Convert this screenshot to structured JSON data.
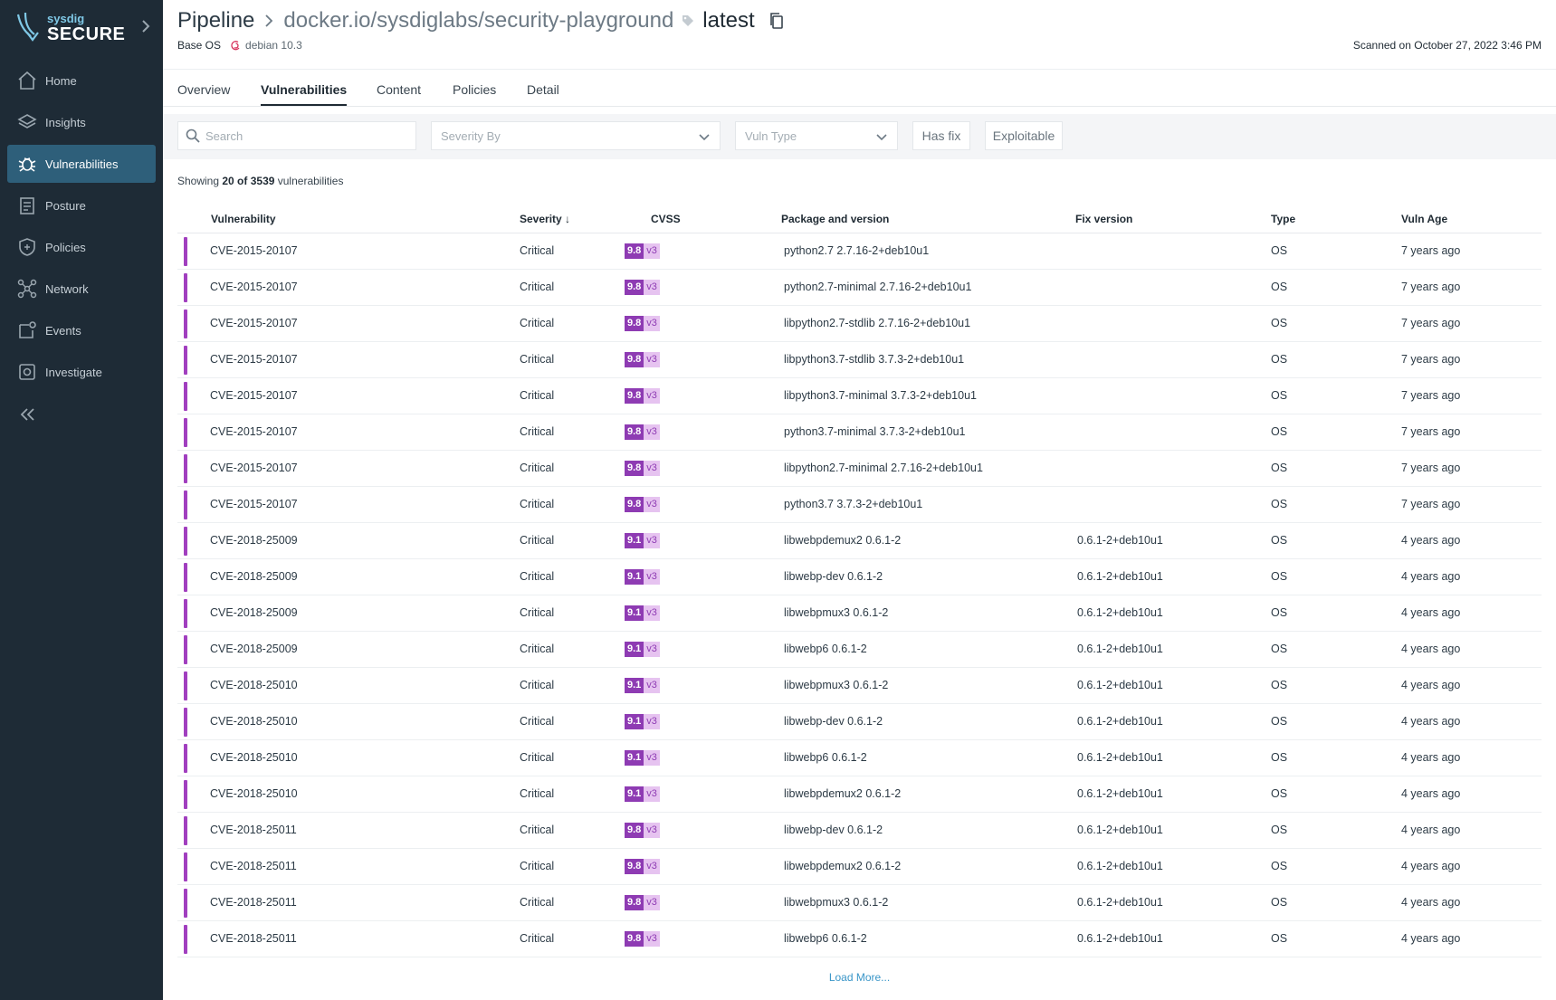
{
  "brand": {
    "small": "sysdig",
    "big": "SECURE"
  },
  "nav": [
    {
      "label": "Home",
      "icon": "home-icon",
      "active": false
    },
    {
      "label": "Insights",
      "icon": "insights-icon",
      "active": false
    },
    {
      "label": "Vulnerabilities",
      "icon": "bug-icon",
      "active": true
    },
    {
      "label": "Posture",
      "icon": "posture-icon",
      "active": false
    },
    {
      "label": "Policies",
      "icon": "shield-icon",
      "active": false
    },
    {
      "label": "Network",
      "icon": "network-icon",
      "active": false
    },
    {
      "label": "Events",
      "icon": "events-icon",
      "active": false
    },
    {
      "label": "Investigate",
      "icon": "investigate-icon",
      "active": false
    }
  ],
  "header": {
    "crumb_root": "Pipeline",
    "crumb_image": "docker.io/sysdiglabs/security-playground",
    "crumb_tag": "latest",
    "base_os_label": "Base OS",
    "base_os_value": "debian 10.3",
    "scanned": "Scanned on October 27, 2022 3:46 PM"
  },
  "tabs": [
    "Overview",
    "Vulnerabilities",
    "Content",
    "Policies",
    "Detail"
  ],
  "active_tab": "Vulnerabilities",
  "filters": {
    "search_placeholder": "Search",
    "severity_by": "Severity By",
    "vuln_type": "Vuln Type",
    "has_fix": "Has fix",
    "exploitable": "Exploitable"
  },
  "showing": {
    "prefix": "Showing ",
    "count": "20 of 3539",
    "suffix": " vulnerabilities"
  },
  "columns": {
    "vulnerability": "Vulnerability",
    "severity": "Severity ↓",
    "cvss": "CVSS",
    "package": "Package and version",
    "fix": "Fix version",
    "type": "Type",
    "age": "Vuln Age"
  },
  "rows": [
    {
      "cve": "CVE-2015-20107",
      "severity": "Critical",
      "score": "9.8",
      "ver": "v3",
      "package": "python2.7 2.7.16-2+deb10u1",
      "fix": "",
      "type": "OS",
      "age": "7 years ago"
    },
    {
      "cve": "CVE-2015-20107",
      "severity": "Critical",
      "score": "9.8",
      "ver": "v3",
      "package": "python2.7-minimal 2.7.16-2+deb10u1",
      "fix": "",
      "type": "OS",
      "age": "7 years ago"
    },
    {
      "cve": "CVE-2015-20107",
      "severity": "Critical",
      "score": "9.8",
      "ver": "v3",
      "package": "libpython2.7-stdlib 2.7.16-2+deb10u1",
      "fix": "",
      "type": "OS",
      "age": "7 years ago"
    },
    {
      "cve": "CVE-2015-20107",
      "severity": "Critical",
      "score": "9.8",
      "ver": "v3",
      "package": "libpython3.7-stdlib 3.7.3-2+deb10u1",
      "fix": "",
      "type": "OS",
      "age": "7 years ago"
    },
    {
      "cve": "CVE-2015-20107",
      "severity": "Critical",
      "score": "9.8",
      "ver": "v3",
      "package": "libpython3.7-minimal 3.7.3-2+deb10u1",
      "fix": "",
      "type": "OS",
      "age": "7 years ago"
    },
    {
      "cve": "CVE-2015-20107",
      "severity": "Critical",
      "score": "9.8",
      "ver": "v3",
      "package": "python3.7-minimal 3.7.3-2+deb10u1",
      "fix": "",
      "type": "OS",
      "age": "7 years ago"
    },
    {
      "cve": "CVE-2015-20107",
      "severity": "Critical",
      "score": "9.8",
      "ver": "v3",
      "package": "libpython2.7-minimal 2.7.16-2+deb10u1",
      "fix": "",
      "type": "OS",
      "age": "7 years ago"
    },
    {
      "cve": "CVE-2015-20107",
      "severity": "Critical",
      "score": "9.8",
      "ver": "v3",
      "package": "python3.7 3.7.3-2+deb10u1",
      "fix": "",
      "type": "OS",
      "age": "7 years ago"
    },
    {
      "cve": "CVE-2018-25009",
      "severity": "Critical",
      "score": "9.1",
      "ver": "v3",
      "package": "libwebpdemux2 0.6.1-2",
      "fix": "0.6.1-2+deb10u1",
      "type": "OS",
      "age": "4 years ago"
    },
    {
      "cve": "CVE-2018-25009",
      "severity": "Critical",
      "score": "9.1",
      "ver": "v3",
      "package": "libwebp-dev 0.6.1-2",
      "fix": "0.6.1-2+deb10u1",
      "type": "OS",
      "age": "4 years ago"
    },
    {
      "cve": "CVE-2018-25009",
      "severity": "Critical",
      "score": "9.1",
      "ver": "v3",
      "package": "libwebpmux3 0.6.1-2",
      "fix": "0.6.1-2+deb10u1",
      "type": "OS",
      "age": "4 years ago"
    },
    {
      "cve": "CVE-2018-25009",
      "severity": "Critical",
      "score": "9.1",
      "ver": "v3",
      "package": "libwebp6 0.6.1-2",
      "fix": "0.6.1-2+deb10u1",
      "type": "OS",
      "age": "4 years ago"
    },
    {
      "cve": "CVE-2018-25010",
      "severity": "Critical",
      "score": "9.1",
      "ver": "v3",
      "package": "libwebpmux3 0.6.1-2",
      "fix": "0.6.1-2+deb10u1",
      "type": "OS",
      "age": "4 years ago"
    },
    {
      "cve": "CVE-2018-25010",
      "severity": "Critical",
      "score": "9.1",
      "ver": "v3",
      "package": "libwebp-dev 0.6.1-2",
      "fix": "0.6.1-2+deb10u1",
      "type": "OS",
      "age": "4 years ago"
    },
    {
      "cve": "CVE-2018-25010",
      "severity": "Critical",
      "score": "9.1",
      "ver": "v3",
      "package": "libwebp6 0.6.1-2",
      "fix": "0.6.1-2+deb10u1",
      "type": "OS",
      "age": "4 years ago"
    },
    {
      "cve": "CVE-2018-25010",
      "severity": "Critical",
      "score": "9.1",
      "ver": "v3",
      "package": "libwebpdemux2 0.6.1-2",
      "fix": "0.6.1-2+deb10u1",
      "type": "OS",
      "age": "4 years ago"
    },
    {
      "cve": "CVE-2018-25011",
      "severity": "Critical",
      "score": "9.8",
      "ver": "v3",
      "package": "libwebp-dev 0.6.1-2",
      "fix": "0.6.1-2+deb10u1",
      "type": "OS",
      "age": "4 years ago"
    },
    {
      "cve": "CVE-2018-25011",
      "severity": "Critical",
      "score": "9.8",
      "ver": "v3",
      "package": "libwebpdemux2 0.6.1-2",
      "fix": "0.6.1-2+deb10u1",
      "type": "OS",
      "age": "4 years ago"
    },
    {
      "cve": "CVE-2018-25011",
      "severity": "Critical",
      "score": "9.8",
      "ver": "v3",
      "package": "libwebpmux3 0.6.1-2",
      "fix": "0.6.1-2+deb10u1",
      "type": "OS",
      "age": "4 years ago"
    },
    {
      "cve": "CVE-2018-25011",
      "severity": "Critical",
      "score": "9.8",
      "ver": "v3",
      "package": "libwebp6 0.6.1-2",
      "fix": "0.6.1-2+deb10u1",
      "type": "OS",
      "age": "4 years ago"
    }
  ],
  "load_more": "Load More...",
  "colors": {
    "sidebar": "#1e2b36",
    "active_nav": "#2e5f7a",
    "critical": "#a13fbf",
    "cvss_score": "#8e3bb3",
    "cvss_ver": "#e6c3f0",
    "link": "#3a96c8"
  }
}
